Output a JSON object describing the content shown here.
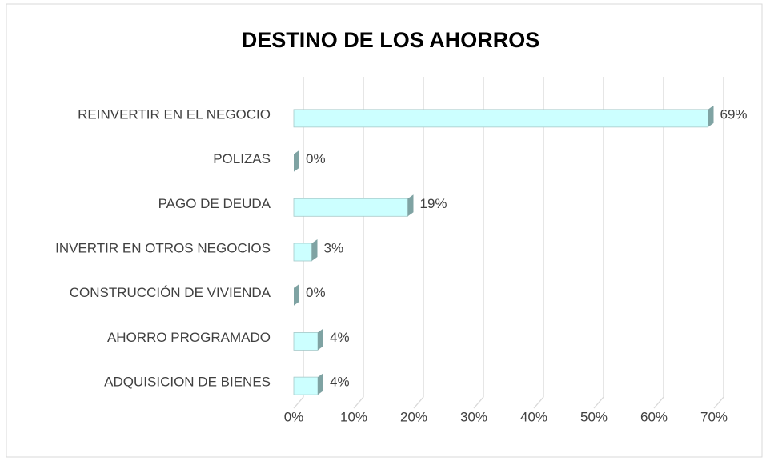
{
  "chart_data": {
    "type": "bar",
    "orientation": "horizontal",
    "title": "DESTINO DE LOS AHORROS",
    "categories": [
      "REINVERTIR EN EL NEGOCIO",
      "POLIZAS",
      "PAGO DE DEUDA",
      "INVERTIR EN OTROS NEGOCIOS",
      "CONSTRUCCIÓN DE VIVIENDA",
      "AHORRO PROGRAMADO",
      "ADQUISICION DE BIENES"
    ],
    "values": [
      69,
      0,
      19,
      3,
      0,
      4,
      4
    ],
    "value_labels": [
      "69%",
      "0%",
      "19%",
      "3%",
      "0%",
      "4%",
      "4%"
    ],
    "color": "#ccffff",
    "xlim": [
      0,
      70
    ],
    "xticks": [
      {
        "value": 0,
        "label": "0%"
      },
      {
        "value": 10,
        "label": "10%"
      },
      {
        "value": 20,
        "label": "20%"
      },
      {
        "value": 30,
        "label": "30%"
      },
      {
        "value": 40,
        "label": "40%"
      },
      {
        "value": 50,
        "label": "50%"
      },
      {
        "value": 60,
        "label": "60%"
      },
      {
        "value": 70,
        "label": "70%"
      }
    ],
    "grid": true
  }
}
